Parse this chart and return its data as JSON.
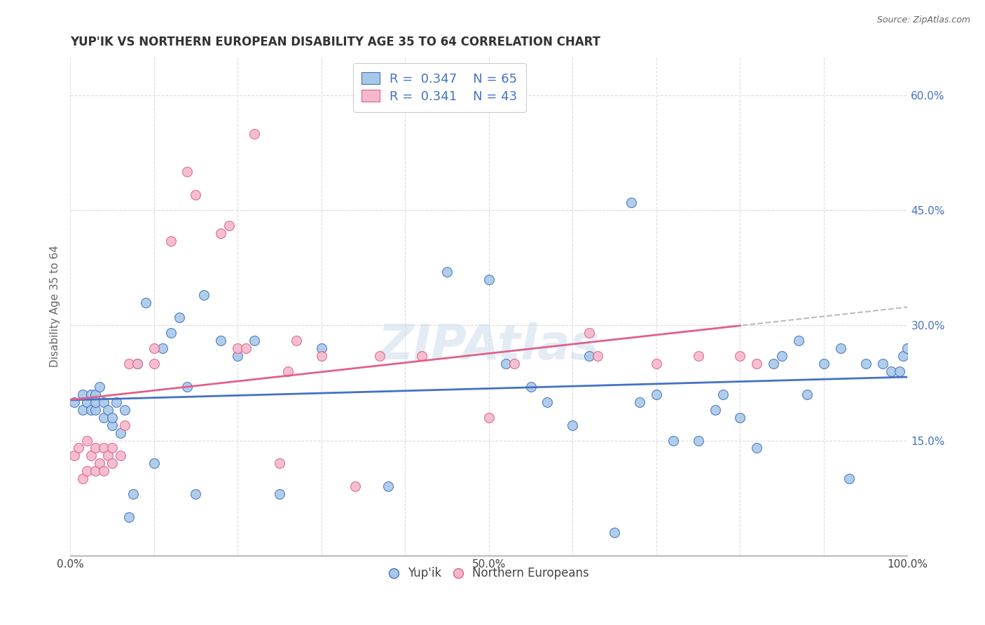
{
  "title": "YUP'IK VS NORTHERN EUROPEAN DISABILITY AGE 35 TO 64 CORRELATION CHART",
  "source": "Source: ZipAtlas.com",
  "ylabel": "Disability Age 35 to 64",
  "xlim": [
    0,
    1.0
  ],
  "ylim": [
    0,
    0.65
  ],
  "xticks": [
    0.0,
    0.1,
    0.2,
    0.3,
    0.4,
    0.5,
    0.6,
    0.7,
    0.8,
    0.9,
    1.0
  ],
  "xticklabels": [
    "0.0%",
    "",
    "",
    "",
    "",
    "50.0%",
    "",
    "",
    "",
    "",
    "100.0%"
  ],
  "yticks": [
    0.0,
    0.15,
    0.3,
    0.45,
    0.6
  ],
  "yticklabels": [
    "",
    "15.0%",
    "30.0%",
    "45.0%",
    "60.0%"
  ],
  "background_color": "#ffffff",
  "color_blue": "#a8c8e8",
  "color_pink": "#f4b8cc",
  "line_blue": "#4472C4",
  "line_pink": "#E0608A",
  "line_dashed": "#bbbbbb",
  "yupik_x": [
    0.005,
    0.015,
    0.015,
    0.02,
    0.025,
    0.025,
    0.03,
    0.03,
    0.03,
    0.035,
    0.04,
    0.04,
    0.045,
    0.05,
    0.05,
    0.055,
    0.06,
    0.065,
    0.07,
    0.075,
    0.08,
    0.09,
    0.1,
    0.11,
    0.12,
    0.13,
    0.14,
    0.15,
    0.16,
    0.18,
    0.2,
    0.22,
    0.25,
    0.3,
    0.38,
    0.45,
    0.5,
    0.52,
    0.55,
    0.57,
    0.6,
    0.62,
    0.65,
    0.67,
    0.68,
    0.7,
    0.72,
    0.75,
    0.77,
    0.78,
    0.8,
    0.82,
    0.84,
    0.85,
    0.87,
    0.88,
    0.9,
    0.92,
    0.93,
    0.95,
    0.97,
    0.98,
    0.99,
    0.995,
    1.0
  ],
  "yupik_y": [
    0.2,
    0.21,
    0.19,
    0.2,
    0.19,
    0.21,
    0.19,
    0.2,
    0.21,
    0.22,
    0.18,
    0.2,
    0.19,
    0.17,
    0.18,
    0.2,
    0.16,
    0.19,
    0.05,
    0.08,
    0.25,
    0.33,
    0.12,
    0.27,
    0.29,
    0.31,
    0.22,
    0.08,
    0.34,
    0.28,
    0.26,
    0.28,
    0.08,
    0.27,
    0.09,
    0.37,
    0.36,
    0.25,
    0.22,
    0.2,
    0.17,
    0.26,
    0.03,
    0.46,
    0.2,
    0.21,
    0.15,
    0.15,
    0.19,
    0.21,
    0.18,
    0.14,
    0.25,
    0.26,
    0.28,
    0.21,
    0.25,
    0.27,
    0.1,
    0.25,
    0.25,
    0.24,
    0.24,
    0.26,
    0.27
  ],
  "neuropean_x": [
    0.005,
    0.01,
    0.015,
    0.02,
    0.02,
    0.025,
    0.03,
    0.03,
    0.035,
    0.04,
    0.04,
    0.045,
    0.05,
    0.05,
    0.06,
    0.065,
    0.07,
    0.08,
    0.1,
    0.1,
    0.12,
    0.14,
    0.15,
    0.18,
    0.19,
    0.2,
    0.21,
    0.22,
    0.25,
    0.26,
    0.27,
    0.3,
    0.34,
    0.37,
    0.42,
    0.5,
    0.53,
    0.62,
    0.63,
    0.7,
    0.75,
    0.8,
    0.82
  ],
  "neuropean_y": [
    0.13,
    0.14,
    0.1,
    0.11,
    0.15,
    0.13,
    0.11,
    0.14,
    0.12,
    0.11,
    0.14,
    0.13,
    0.12,
    0.14,
    0.13,
    0.17,
    0.25,
    0.25,
    0.25,
    0.27,
    0.41,
    0.5,
    0.47,
    0.42,
    0.43,
    0.27,
    0.27,
    0.55,
    0.12,
    0.24,
    0.28,
    0.26,
    0.09,
    0.26,
    0.26,
    0.18,
    0.25,
    0.29,
    0.26,
    0.25,
    0.26,
    0.26,
    0.25
  ]
}
